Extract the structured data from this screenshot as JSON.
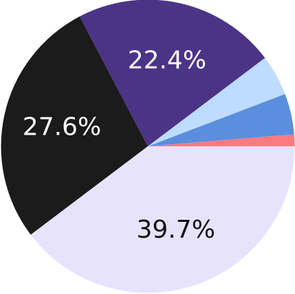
{
  "chart_data": {
    "type": "pie",
    "values": [
      1.3,
      4.5,
      4.5,
      22.4,
      27.6,
      39.7
    ],
    "value_labels": [
      null,
      null,
      null,
      "22.4%",
      "27.6%",
      "39.7%"
    ],
    "colors": [
      "#ff7a7f",
      "#5a8fdd",
      "#bedcff",
      "#4b3486",
      "#1b1b1b",
      "#e8e3fd"
    ]
  }
}
